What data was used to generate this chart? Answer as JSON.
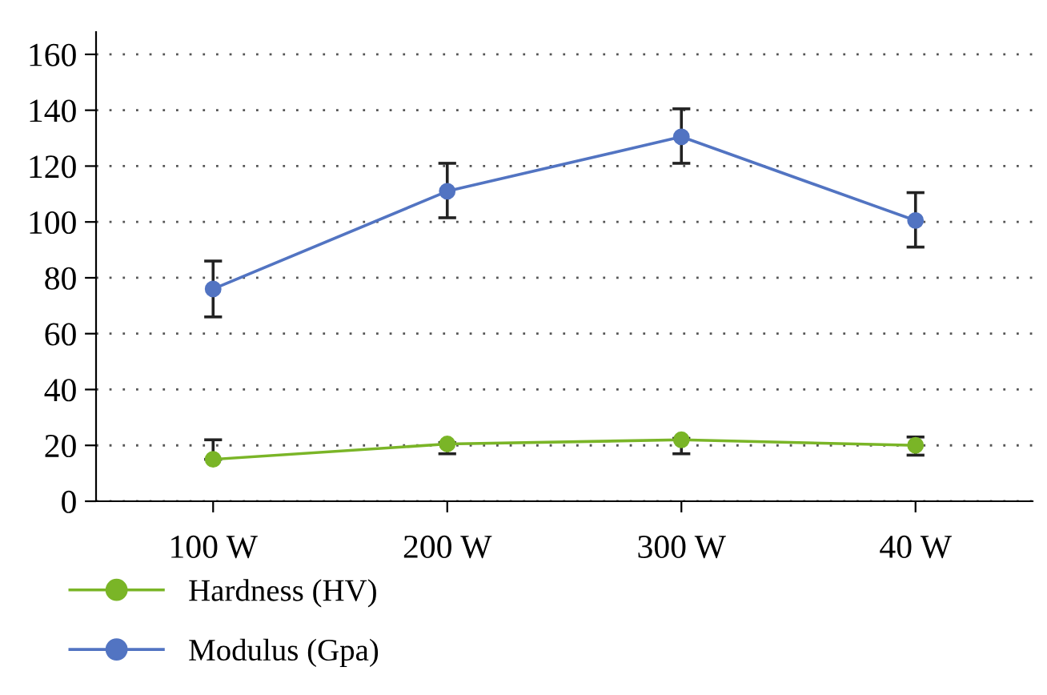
{
  "chart_data": {
    "type": "line",
    "categories": [
      "100 W",
      "200 W",
      "300 W",
      "40 W"
    ],
    "series": [
      {
        "name": "Hardness (HV)",
        "color": "#7ab527",
        "values": [
          15,
          20.5,
          22,
          20
        ],
        "errors": [
          [
            15,
            22
          ],
          [
            17,
            21
          ],
          [
            17,
            22.5
          ],
          [
            16.5,
            23
          ]
        ]
      },
      {
        "name": "Modulus (Gpa)",
        "color": "#5274c2",
        "values": [
          76,
          111,
          130.5,
          100.5
        ],
        "errors": [
          [
            66,
            86
          ],
          [
            101.5,
            121
          ],
          [
            121,
            140.5
          ],
          [
            91,
            110.5
          ]
        ]
      }
    ],
    "ylim": [
      0,
      168
    ],
    "yticks": [
      0,
      20,
      40,
      60,
      80,
      100,
      120,
      140,
      160
    ],
    "grid": "y",
    "legend": "bottom left",
    "marker": "circle",
    "line_style": "solid"
  }
}
